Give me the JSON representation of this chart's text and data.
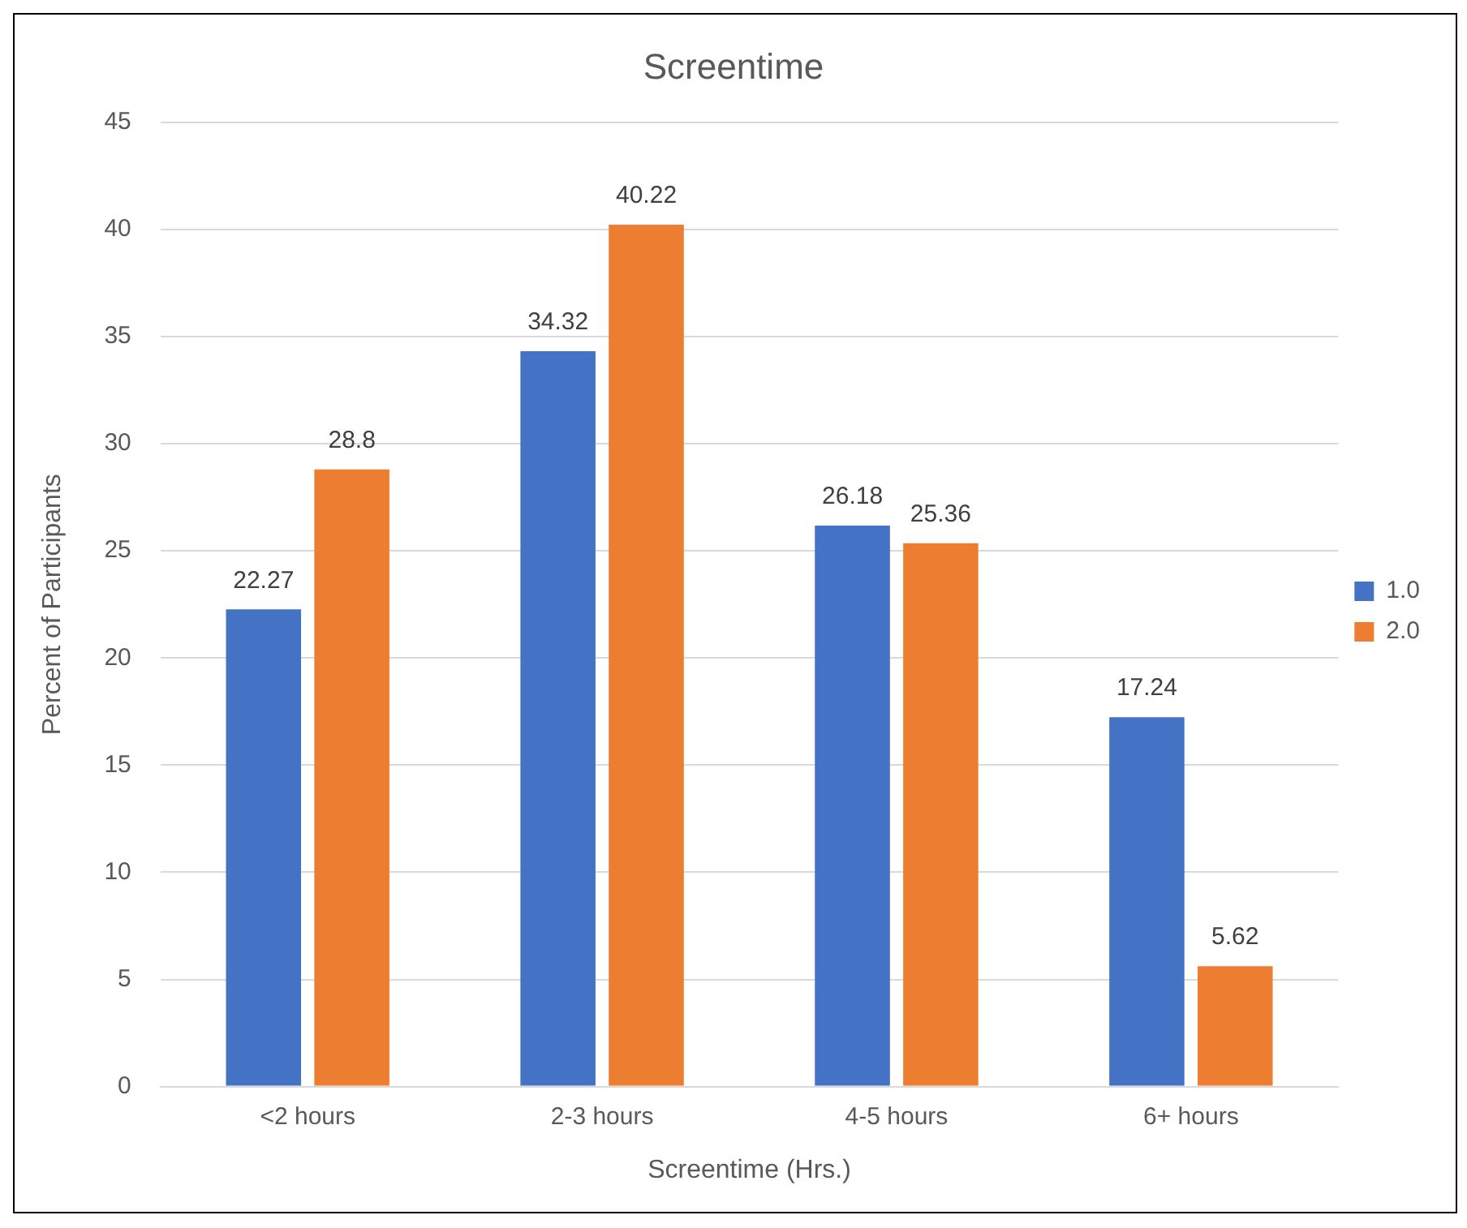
{
  "chart_data": {
    "type": "bar",
    "title": "Screentime",
    "xlabel": "Screentime (Hrs.)",
    "ylabel": "Percent of Participants",
    "categories": [
      "<2 hours",
      "2-3 hours",
      "4-5 hours",
      "6+ hours"
    ],
    "series": [
      {
        "name": "1.0",
        "color": "#4472c4",
        "values": [
          22.27,
          34.32,
          26.18,
          17.24
        ]
      },
      {
        "name": "2.0",
        "color": "#ed7d31",
        "values": [
          28.8,
          40.22,
          25.36,
          5.62
        ]
      }
    ],
    "ylim": [
      0,
      45
    ],
    "yticks": [
      0,
      5,
      10,
      15,
      20,
      25,
      30,
      35,
      40,
      45
    ],
    "grid": "y",
    "legend": "right",
    "data_labels": true
  }
}
